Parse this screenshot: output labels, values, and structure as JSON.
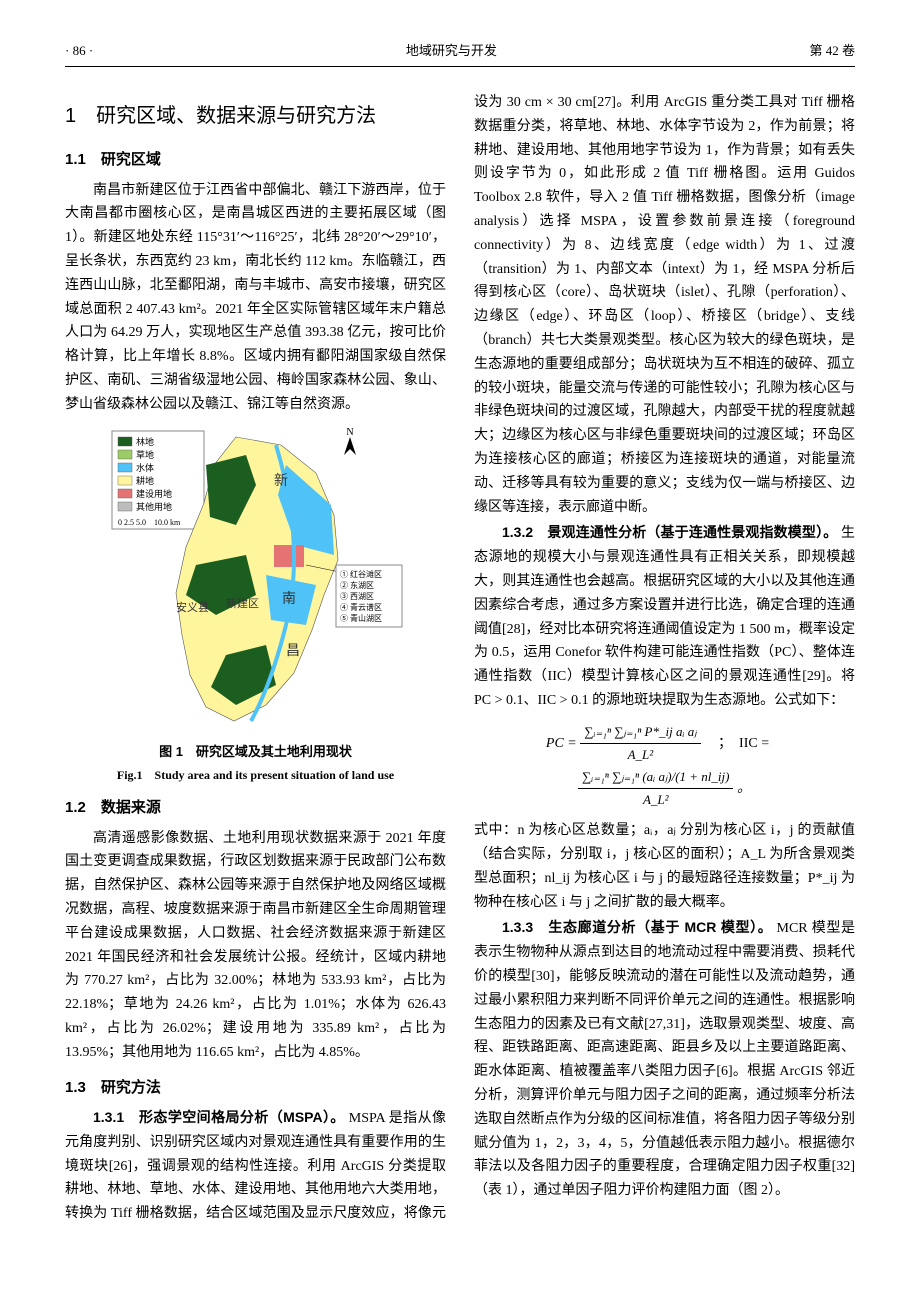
{
  "header": {
    "page_no": "· 86 ·",
    "journal": "地域研究与开发",
    "volume": "第 42 卷"
  },
  "section1": {
    "title": "1　研究区域、数据来源与研究方法"
  },
  "s1_1": {
    "heading": "1.1　研究区域",
    "body": "南昌市新建区位于江西省中部偏北、赣江下游西岸，位于大南昌都市圈核心区，是南昌城区西进的主要拓展区域（图 1）。新建区地处东经 115°31′～116°25′，北纬 28°20′～29°10′，呈长条状，东西宽约 23 km，南北长约 112 km。东临赣江，西连西山山脉，北至鄱阳湖，南与丰城市、高安市接壤，研究区域总面积 2 407.43 km²。2021 年全区实际管辖区域年末户籍总人口为 64.29 万人，实现地区生产总值 393.38 亿元，按可比价格计算，比上年增长 8.8%。区域内拥有鄱阳湖国家级自然保护区、南矶、三湖省级湿地公园、梅岭国家森林公园、象山、梦山省级森林公园以及赣江、锦江等自然资源。"
  },
  "figure1": {
    "map": {
      "legend": {
        "title_items": [
          {
            "color": "#1b5e20",
            "label": "林地"
          },
          {
            "color": "#9ccc65",
            "label": "草地"
          },
          {
            "color": "#4fc3f7",
            "label": "水体"
          },
          {
            "color": "#fff59d",
            "label": "耕地"
          },
          {
            "color": "#e57373",
            "label": "建设用地"
          },
          {
            "color": "#bdbdbd",
            "label": "其他用地"
          }
        ],
        "scale_bar": "0 2.5 5.0　10.0 km"
      },
      "inset_labels": [
        {
          "num": "①",
          "text": "红谷滩区"
        },
        {
          "num": "②",
          "text": "东湖区"
        },
        {
          "num": "③",
          "text": "西湖区"
        },
        {
          "num": "④",
          "text": "青云谱区"
        },
        {
          "num": "⑤",
          "text": "青山湖区"
        }
      ],
      "place_labels": [
        "新",
        "安义县",
        "新建区",
        "南",
        "昌"
      ],
      "colors": {
        "forest": "#1b5e20",
        "grass": "#9ccc65",
        "water": "#4fc3f7",
        "farmland": "#fff59d",
        "builtup": "#e57373",
        "other": "#bdbdbd",
        "outline": "#555555",
        "text": "#333333"
      }
    },
    "caption_cn": "图 1　研究区域及其土地利用现状",
    "caption_en": "Fig.1　Study area and its present situation of land use"
  },
  "s1_2": {
    "heading": "1.2　数据来源",
    "body": "高清遥感影像数据、土地利用现状数据来源于 2021 年度国土变更调查成果数据，行政区划数据来源于民政部门公布数据，自然保护区、森林公园等来源于自然保护地及网络区域概况数据，高程、坡度数据来源于南昌市新建区全生命周期管理平台建设成果数据，人口数据、社会经济数据来源于新建区 2021 年国民经济和社会发展统计公报。经统计，区域内耕地为 770.27 km²，占比为 32.00%；林地为 533.93 km²，占比为 22.18%；草地为 24.26 km²，占比为 1.01%；水体为 626.43 km²，占比为 26.02%；建设用地为 335.89 km²，占比为 13.95%；其他用地为 116.65 km²，占比为 4.85%。"
  },
  "s1_3": {
    "heading": "1.3　研究方法"
  },
  "s1_3_1": {
    "runin": "1.3.1　形态学空间格局分析（MSPA）。",
    "body": "MSPA 是指从像元角度判别、识别研究区域内对景观连通性具有重要作用的生境斑块[26]，强调景观的结构性连接。利用 ArcGIS 分类提取耕地、林地、草地、水体、建设用地、其他用地六大类用地，转换为 Tiff 栅格数据，结合区域范围及显示尺度效应，将像元设为 30 cm × 30 cm[27]。利用 ArcGIS 重分类工具对 Tiff 栅格数据重分类，将草地、林地、水体字节设为 2，作为前景；将耕地、建设用地、其他用地字节设为 1，作为背景；如有丢失则设字节为 0，如此形成 2 值 Tiff 栅格图。运用 Guidos Toolbox 2.8 软件，导入 2 值 Tiff 栅格数据，图像分析（image analysis）选择 MSPA，设置参数前景连接（foreground connectivity）为 8、边线宽度（edge width）为 1、过渡（transition）为 1、内部文本（intext）为 1，经 MSPA 分析后得到核心区（core）、岛状斑块（islet）、孔隙（perforation）、边缘区（edge）、环岛区（loop）、桥接区（bridge）、支线（branch）共七大类景观类型。核心区为较大的绿色斑块，是生态源地的重要组成部分；岛状斑块为互不相连的破碎、孤立的较小斑块，能量交流与传递的可能性较小；孔隙为核心区与非绿色斑块间的过渡区域，孔隙越大，内部受干扰的程度就越大；边缘区为核心区与非绿色重要斑块间的过渡区域；环岛区为连接核心区的廊道；桥接区为连接斑块的通道，对能量流动、迁移等具有较为重要的意义；支线为仅一端与桥接区、边缘区等连接，表示廊道中断。"
  },
  "s1_3_2": {
    "runin": "1.3.2　景观连通性分析（基于连通性景观指数模型）。",
    "body_a": "生态源地的规模大小与景观连通性具有正相关关系，即规模越大，则其连通性也会越高。根据研究区域的大小以及其他连通因素综合考虑，通过多方案设置并进行比选，确定合理的连通阈值[28]，经对比本研究将连通阈值设定为 1 500 m，概率设定为 0.5，运用 Conefor 软件构建可能连通性指数（PC）、整体连通性指数（IIC）模型计算核心区之间的景观连通性[29]。将 PC > 0.1、IIC > 0.1 的源地斑块提取为生态源地。公式如下：",
    "body_b": "式中：n 为核心区总数量；aᵢ，aⱼ 分别为核心区 i，j 的贡献值（结合实际，分别取 i，j 核心区的面积）；A_L 为所含景观类型总面积；nl_ij 为核心区 i 与 j 的最短路径连接数量；P*_ij 为物种在核心区 i 与 j 之间扩散的最大概率。"
  },
  "formula": {
    "pc_label": "PC =",
    "pc_num": "∑ᵢ₌₁ⁿ ∑ⱼ₌₁ⁿ P*_ij aᵢ aⱼ",
    "denom": "A_L²",
    "iic_label": "；　IIC =",
    "iic_num": "∑ᵢ₌₁ⁿ ∑ⱼ₌₁ⁿ (aᵢ aⱼ)/(1 + nl_ij)",
    "tail": "。"
  },
  "s1_3_3": {
    "runin": "1.3.3　生态廊道分析（基于 MCR 模型）。",
    "body": "MCR 模型是表示生物物种从源点到达目的地流动过程中需要消费、损耗代价的模型[30]，能够反映流动的潜在可能性以及流动趋势，通过最小累积阻力来判断不同评价单元之间的连通性。根据影响生态阻力的因素及已有文献[27,31]，选取景观类型、坡度、高程、距铁路距离、距高速距离、距县乡及以上主要道路距离、距水体距离、植被覆盖率八类阻力因子[6]。根据 ArcGIS 邻近分析，测算评价单元与阻力因子之间的距离，通过频率分析法选取自然断点作为分级的区间标准值，将各阻力因子等级分别赋分值为 1，2，3，4，5，分值越低表示阻力越小。根据德尔菲法以及各阻力因子的重要程度，合理确定阻力因子权重[32]（表 1），通过单因子阻力评价构建阻力面（图 2）。"
  }
}
